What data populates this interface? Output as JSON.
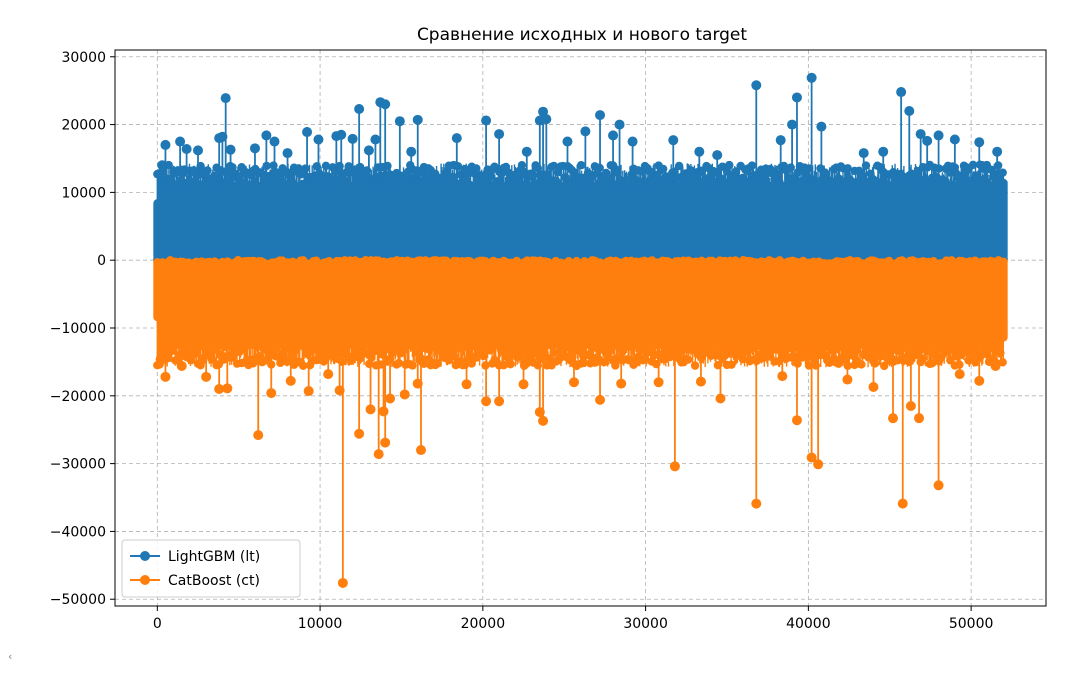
{
  "chart_data": {
    "type": "line",
    "title": "Сравнение исходных и нового target",
    "xlabel": "",
    "ylabel": "",
    "xlim": [
      -2600,
      54600
    ],
    "ylim": [
      -51000,
      31000
    ],
    "x_ticks": [
      0,
      10000,
      20000,
      30000,
      40000,
      50000
    ],
    "x_tick_labels": [
      "0",
      "10000",
      "20000",
      "30000",
      "40000",
      "50000"
    ],
    "y_ticks": [
      30000,
      20000,
      10000,
      0,
      -10000,
      -20000,
      -30000,
      -40000,
      -50000
    ],
    "y_tick_labels": [
      "30000",
      "20000",
      "10000",
      "0",
      "−10000",
      "−20000",
      "−30000",
      "−40000",
      "−50000"
    ],
    "grid": true,
    "legend_position": "lower-left",
    "x_range": [
      0,
      52000
    ],
    "series": [
      {
        "name": "LightGBM (lt)",
        "color": "#1f77b4",
        "marker": "circle",
        "dense_band": [
          0,
          11500
        ],
        "outliers": [
          [
            300,
            14000
          ],
          [
            500,
            17000
          ],
          [
            1400,
            17500
          ],
          [
            1800,
            16400
          ],
          [
            2500,
            16200
          ],
          [
            3800,
            18000
          ],
          [
            4000,
            18200
          ],
          [
            4200,
            23900
          ],
          [
            4500,
            16300
          ],
          [
            6000,
            16500
          ],
          [
            6700,
            18400
          ],
          [
            7200,
            17500
          ],
          [
            8000,
            15800
          ],
          [
            9200,
            18900
          ],
          [
            9900,
            17800
          ],
          [
            11000,
            18300
          ],
          [
            11300,
            18500
          ],
          [
            12000,
            17900
          ],
          [
            12400,
            22300
          ],
          [
            13000,
            16200
          ],
          [
            13400,
            17800
          ],
          [
            13700,
            23300
          ],
          [
            14000,
            23000
          ],
          [
            14900,
            20500
          ],
          [
            15600,
            16000
          ],
          [
            16000,
            20700
          ],
          [
            18400,
            18000
          ],
          [
            20200,
            20600
          ],
          [
            21000,
            18600
          ],
          [
            22700,
            16000
          ],
          [
            23500,
            20600
          ],
          [
            23700,
            21900
          ],
          [
            23900,
            20800
          ],
          [
            25200,
            17500
          ],
          [
            26300,
            19000
          ],
          [
            27200,
            21400
          ],
          [
            28000,
            18400
          ],
          [
            28400,
            20000
          ],
          [
            29200,
            17500
          ],
          [
            31700,
            17700
          ],
          [
            33300,
            16000
          ],
          [
            34400,
            15500
          ],
          [
            36800,
            25800
          ],
          [
            38300,
            17700
          ],
          [
            39000,
            20000
          ],
          [
            39300,
            24000
          ],
          [
            40200,
            26900
          ],
          [
            40800,
            19700
          ],
          [
            43400,
            15800
          ],
          [
            44600,
            16000
          ],
          [
            45700,
            24800
          ],
          [
            46200,
            22000
          ],
          [
            46900,
            18600
          ],
          [
            47300,
            17600
          ],
          [
            48000,
            18400
          ],
          [
            49000,
            17800
          ],
          [
            50500,
            17400
          ],
          [
            51600,
            16000
          ]
        ]
      },
      {
        "name": "CatBoost (ct)",
        "color": "#ff7f0e",
        "marker": "circle",
        "dense_band": [
          -13000,
          0
        ],
        "outliers": [
          [
            200,
            -14600
          ],
          [
            500,
            -17200
          ],
          [
            1500,
            -15600
          ],
          [
            3000,
            -17200
          ],
          [
            3800,
            -19000
          ],
          [
            4300,
            -18900
          ],
          [
            6200,
            -25800
          ],
          [
            7000,
            -19600
          ],
          [
            8200,
            -17800
          ],
          [
            9300,
            -19300
          ],
          [
            10500,
            -16800
          ],
          [
            11200,
            -19200
          ],
          [
            11400,
            -47600
          ],
          [
            12400,
            -25600
          ],
          [
            13100,
            -22000
          ],
          [
            13600,
            -28600
          ],
          [
            13900,
            -22300
          ],
          [
            14000,
            -26900
          ],
          [
            14300,
            -20400
          ],
          [
            15200,
            -19800
          ],
          [
            16000,
            -18200
          ],
          [
            16200,
            -28000
          ],
          [
            19000,
            -18300
          ],
          [
            20200,
            -20800
          ],
          [
            21000,
            -20800
          ],
          [
            22500,
            -18300
          ],
          [
            23500,
            -22400
          ],
          [
            23700,
            -23700
          ],
          [
            25600,
            -18000
          ],
          [
            27200,
            -20600
          ],
          [
            28500,
            -18200
          ],
          [
            30800,
            -18000
          ],
          [
            31800,
            -30400
          ],
          [
            33400,
            -17900
          ],
          [
            34600,
            -20400
          ],
          [
            36800,
            -35900
          ],
          [
            38400,
            -17100
          ],
          [
            39300,
            -23600
          ],
          [
            40200,
            -29100
          ],
          [
            40600,
            -30100
          ],
          [
            42400,
            -17600
          ],
          [
            44000,
            -18700
          ],
          [
            45200,
            -23300
          ],
          [
            45800,
            -35900
          ],
          [
            46300,
            -21500
          ],
          [
            46800,
            -23300
          ],
          [
            48000,
            -33200
          ],
          [
            49300,
            -16800
          ],
          [
            50500,
            -17800
          ],
          [
            51500,
            -15600
          ]
        ]
      }
    ]
  }
}
